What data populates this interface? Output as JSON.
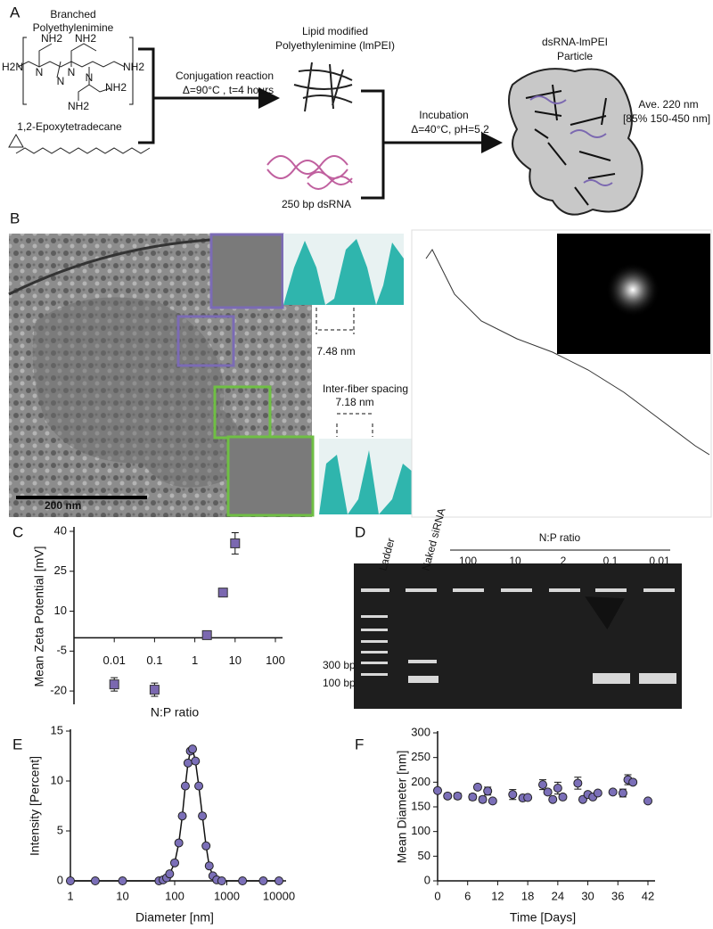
{
  "panel_labels": [
    "A",
    "B",
    "C",
    "D",
    "E",
    "F"
  ],
  "diagram": {
    "pei_lines": [
      "Branched",
      "Polyethylenimine"
    ],
    "pei_atoms": [
      "H2N",
      "NH2",
      "NH2",
      "NH2",
      "NH2",
      "NH2",
      "N",
      "N",
      "N",
      "N"
    ],
    "epoxide": "1,2-Epoxytetradecane",
    "step1": "Conjugation reaction",
    "step1_conditions": "Δ=90°C , t=4 hours",
    "lmpei_lines": [
      "Lipid modified",
      "Polyethylenimine (lmPEI)"
    ],
    "dsrna": "250 bp dsRNA",
    "step2": "Incubation",
    "step2_conditions": "Δ=40°C, pH=5.2",
    "particle_lines": [
      "dsRNA-lmPEI",
      "Particle"
    ],
    "size_lines": [
      "Ave. 220 nm",
      "[85% 150-450 nm]"
    ]
  },
  "micrograph": {
    "scale_bar": "200 nm",
    "spacing_1": "7.48 nm",
    "spacing_caption": "Inter-fiber spacing",
    "spacing_2": "7.18 nm"
  },
  "gel": {
    "lanes": [
      "Ladder",
      "Naked siRNA"
    ],
    "group_title": "N:P ratio",
    "ratios": [
      "100",
      "10",
      "2",
      "0.1",
      "0.01"
    ],
    "markers": [
      "300 bp",
      "100 bp"
    ]
  },
  "chart_data": [
    {
      "type": "scatter",
      "x_label": "N:P ratio",
      "y_label": "Mean Zeta Potential [mV]",
      "x": [
        0.01,
        0.1,
        2,
        5,
        10
      ],
      "values": [
        -17.5,
        -19.5,
        1,
        17,
        35.5
      ],
      "errors": [
        2.5,
        2.5,
        0,
        1.5,
        4
      ],
      "x_log": true,
      "xlim": [
        0.001,
        100
      ],
      "xticks": [
        0.01,
        0.1,
        1,
        10,
        100
      ],
      "ylim": [
        -25,
        41
      ],
      "yticks": [
        -20,
        -5,
        10,
        25,
        40
      ],
      "color": "#7b68b0",
      "marker": "square"
    },
    {
      "type": "line",
      "x_label": "Diameter [nm]",
      "y_label": "Intensity [Percent]",
      "x": [
        1,
        3,
        10,
        50,
        60,
        70,
        80,
        100,
        120,
        140,
        160,
        180,
        200,
        220,
        250,
        290,
        340,
        400,
        460,
        540,
        640,
        800,
        2000,
        5000,
        10000
      ],
      "values": [
        0,
        0,
        0,
        0,
        0.1,
        0.3,
        0.7,
        1.8,
        3.8,
        6.5,
        9.5,
        11.8,
        13,
        13.2,
        12,
        9.5,
        6.5,
        3.5,
        1.5,
        0.5,
        0.1,
        0,
        0,
        0,
        0
      ],
      "x_log": true,
      "xlim": [
        1,
        10000
      ],
      "xticks": [
        1,
        10,
        100,
        1000,
        10000
      ],
      "ylim": [
        0,
        15
      ],
      "yticks": [
        0,
        5,
        10,
        15
      ],
      "color": "#7b6fb8",
      "marker": "circle"
    },
    {
      "type": "scatter",
      "x_label": "Time [Days]",
      "y_label": "Mean Diameter [nm]",
      "x": [
        0,
        2,
        4,
        7,
        8,
        9,
        10,
        11,
        15,
        17,
        18,
        21,
        22,
        23,
        24,
        25,
        28,
        29,
        30,
        31,
        32,
        35,
        37,
        38,
        39,
        42
      ],
      "values": [
        183,
        172,
        172,
        170,
        190,
        165,
        182,
        162,
        175,
        168,
        169,
        195,
        180,
        165,
        188,
        170,
        198,
        165,
        175,
        170,
        178,
        180,
        178,
        205,
        200,
        162
      ],
      "errors": [
        5,
        5,
        6,
        6,
        5,
        6,
        8,
        4,
        10,
        4,
        3,
        10,
        5,
        4,
        12,
        5,
        12,
        4,
        5,
        3,
        4,
        4,
        8,
        10,
        4,
        3
      ],
      "xlim": [
        0,
        42
      ],
      "xticks": [
        0,
        6,
        12,
        18,
        24,
        30,
        36,
        42
      ],
      "ylim": [
        0,
        300
      ],
      "yticks": [
        0,
        50,
        100,
        150,
        200,
        250,
        300
      ],
      "color": "#7b6fb8",
      "marker": "circle"
    }
  ]
}
